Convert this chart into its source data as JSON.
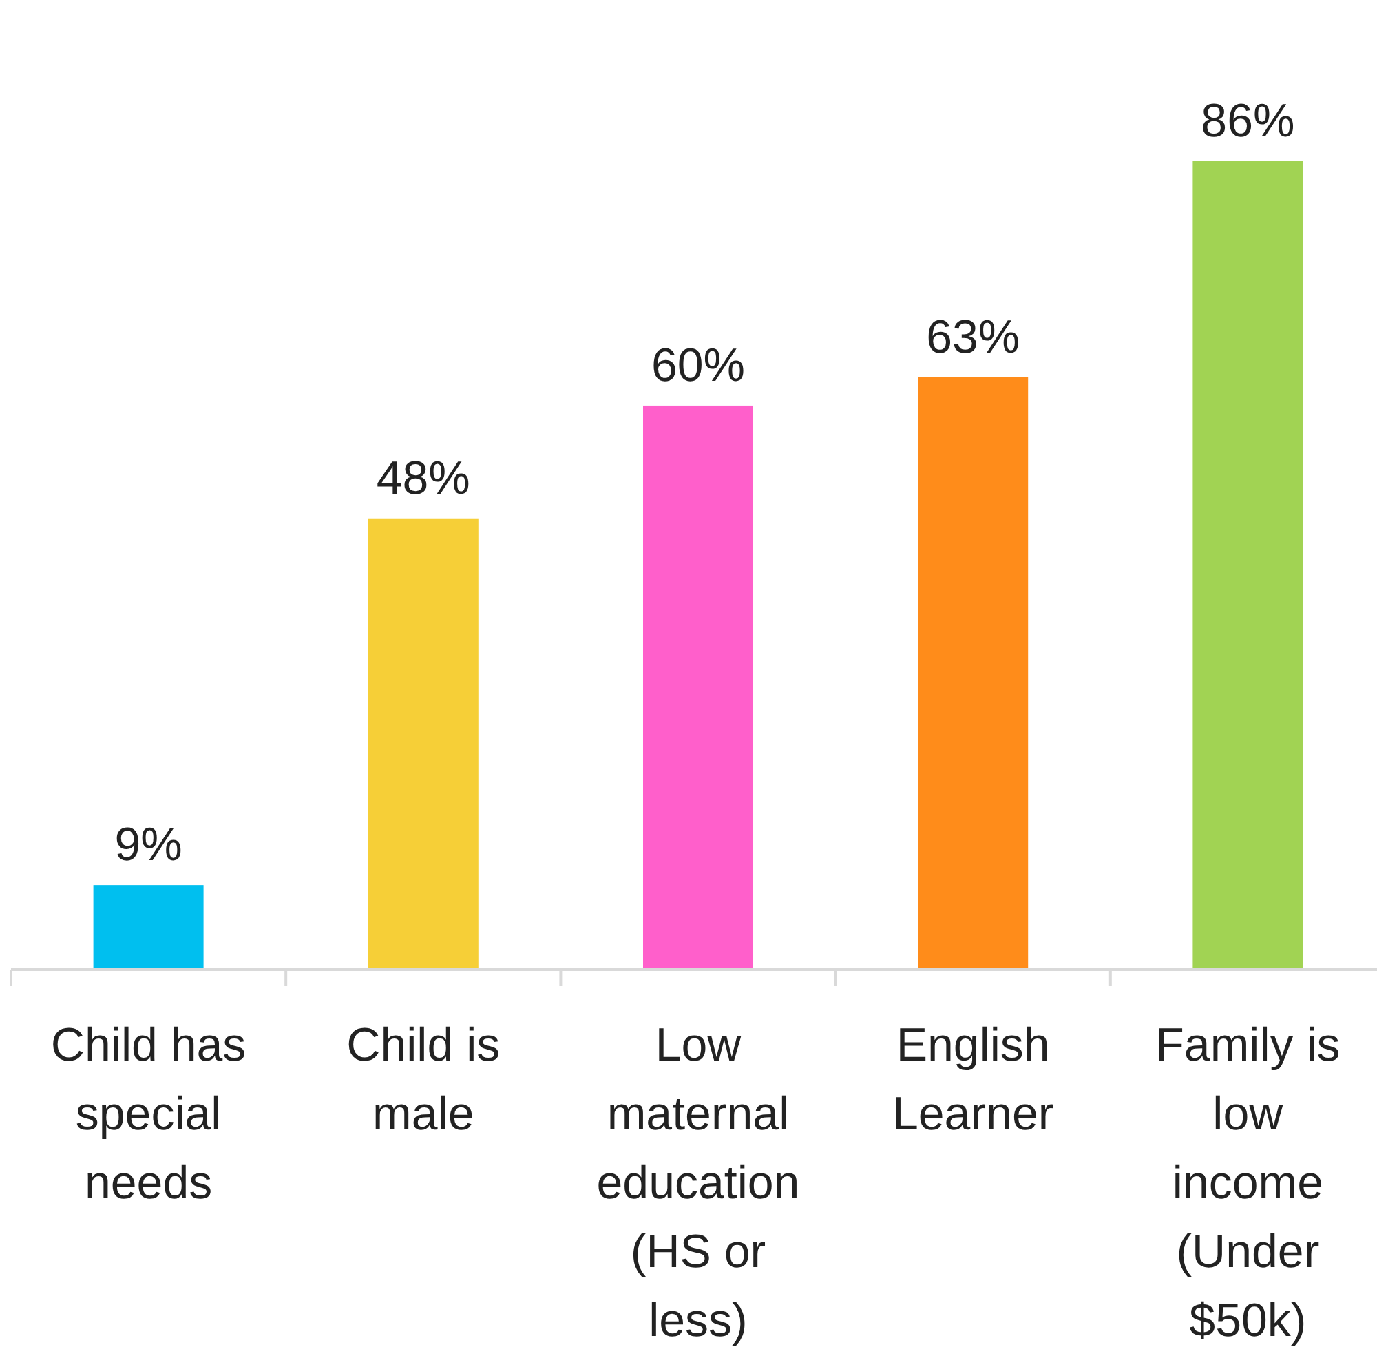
{
  "chart_data": {
    "type": "bar",
    "categories": [
      "Child has special needs",
      "Child is male",
      "Low maternal education (HS or less)",
      "English Learner",
      "Family is low income (Under $50k)"
    ],
    "values": [
      9,
      48,
      60,
      63,
      86
    ],
    "colors": [
      "#00bfef",
      "#f6cf37",
      "#ff5fcb",
      "#ff8c1a",
      "#a1d353"
    ],
    "value_labels": [
      "9%",
      "48%",
      "60%",
      "63%",
      "86%"
    ]
  }
}
